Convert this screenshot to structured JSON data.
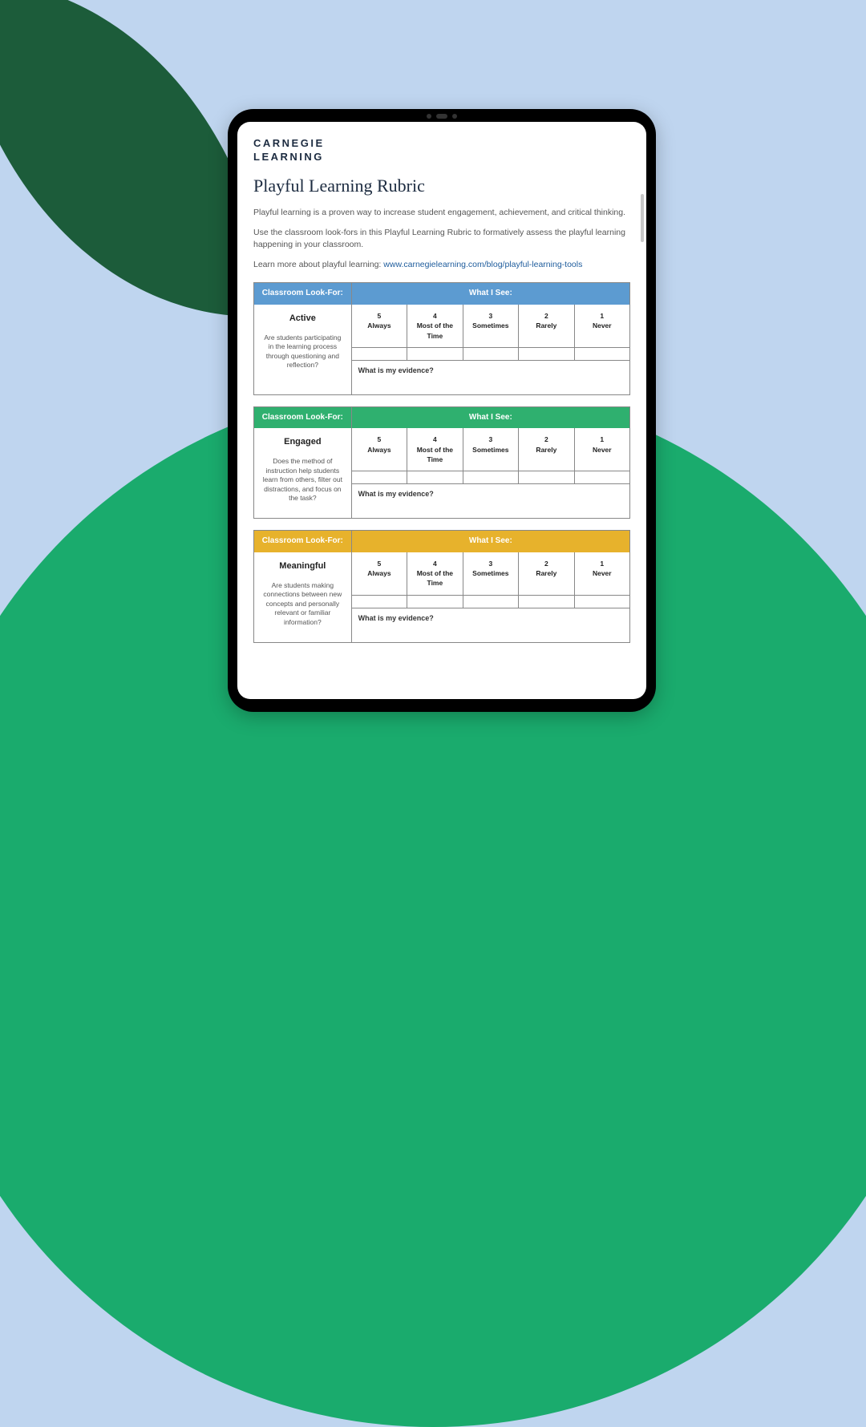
{
  "background": {
    "page_bg": "#bfd5ef",
    "leaf_color": "#1c5c3a",
    "circle_color": "#1aab6d"
  },
  "logo": {
    "line1": "CARNEGIE",
    "line2": "LEARNING"
  },
  "title": "Playful Learning Rubric",
  "intro1": "Playful learning is a proven way to increase student engagement, achievement, and critical thinking.",
  "intro2": "Use the classroom look-fors in this Playful Learning Rubric to formatively assess the playful learning happening in your classroom.",
  "intro3_prefix": "Learn more about playful learning: ",
  "intro3_link": "www.carnegielearning.com/blog/playful-learning-tools",
  "header_left": "Classroom Look-For:",
  "header_right": "What I See:",
  "evidence_label": "What is my evidence?",
  "scale": [
    {
      "num": "5",
      "label": "Always"
    },
    {
      "num": "4",
      "label": "Most of the Time"
    },
    {
      "num": "3",
      "label": "Sometimes"
    },
    {
      "num": "2",
      "label": "Rarely"
    },
    {
      "num": "1",
      "label": "Never"
    }
  ],
  "sections": [
    {
      "color": "#5c9bd1",
      "category": "Active",
      "question": "Are students participating in the learning process through questioning and reflection?"
    },
    {
      "color": "#2fb06f",
      "category": "Engaged",
      "question": "Does the method of instruction help students learn from others, filter out distractions, and focus on the task?"
    },
    {
      "color": "#e7b22c",
      "category": "Meaningful",
      "question": "Are students making connections between new concepts and personally relevant or familiar information?"
    }
  ]
}
